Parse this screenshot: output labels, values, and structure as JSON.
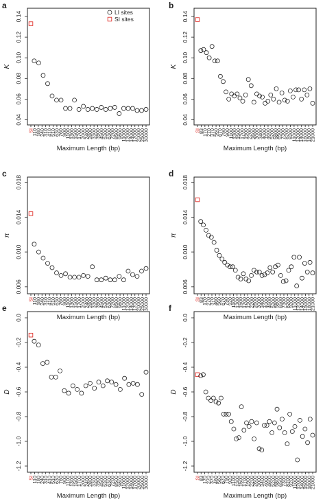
{
  "legend": {
    "entries": [
      {
        "label": "LI sites",
        "marker": "circle",
        "color": "#222222"
      },
      {
        "label": "SI sites",
        "marker": "square",
        "color": "#e0302a"
      }
    ]
  },
  "colors": {
    "li": "#222222",
    "si": "#e0302a"
  },
  "chart_data": [
    {
      "panel": "a",
      "type": "scatter",
      "ylabel": "K",
      "xlabel": "Maximum Length (bp)",
      "ylim": [
        0.035,
        0.148
      ],
      "yticks": [
        0.04,
        0.06,
        0.08,
        0.1,
        0.12,
        0.14
      ],
      "ytick_labels": [
        "0.04",
        "0.06",
        "0.08",
        "0.10",
        "0.12",
        "0.14"
      ],
      "legend_location": "top-right",
      "x_labels": [
        "SI",
        "110",
        "180",
        "240",
        "310",
        "410",
        "510",
        "630",
        "760",
        "900",
        "1100",
        "1300",
        "1500",
        "1700",
        "2000",
        "2400",
        "2800",
        "3300",
        "3900",
        "4500",
        "5300",
        "6300",
        "7200",
        "8500",
        "9800",
        "11000",
        "12000",
        "14000",
        "17000",
        "20000",
        "25000",
        "30000"
      ],
      "si_value": 0.133,
      "li_values": [
        0.097,
        0.095,
        0.083,
        0.075,
        0.063,
        0.059,
        0.059,
        0.051,
        0.051,
        0.059,
        0.05,
        0.053,
        0.05,
        0.051,
        0.05,
        0.052,
        0.05,
        0.051,
        0.052,
        0.046,
        0.051,
        0.051,
        0.051,
        0.049,
        0.049,
        0.05
      ]
    },
    {
      "panel": "b",
      "type": "scatter",
      "ylabel": "K",
      "xlabel": "Maximum Length (bp)",
      "ylim": [
        0.035,
        0.148
      ],
      "yticks": [
        0.04,
        0.06,
        0.08,
        0.1,
        0.12,
        0.14
      ],
      "ytick_labels": [
        "0.04",
        "0.06",
        "0.08",
        "0.10",
        "0.12",
        "0.14"
      ],
      "legend_location": "none",
      "x_labels": [
        "SI",
        "83",
        "170",
        "270",
        "370",
        "560",
        "670",
        "790",
        "900",
        "1100",
        "1300",
        "1500",
        "1700",
        "1900",
        "2200",
        "2600",
        "3000",
        "3400",
        "4000",
        "4600",
        "5200",
        "5800",
        "6500",
        "7300",
        "8200",
        "9200",
        "11000",
        "12000",
        "14000",
        "16000",
        "18000",
        "21000"
      ],
      "si_value": 0.137,
      "li_values": [
        0.107,
        0.108,
        0.105,
        0.1,
        0.111,
        0.097,
        0.097,
        0.082,
        0.077,
        0.067,
        0.06,
        0.065,
        0.063,
        0.065,
        0.061,
        0.058,
        0.064,
        0.079,
        0.073,
        0.057,
        0.065,
        0.063,
        0.062,
        0.056,
        0.058,
        0.064,
        0.06,
        0.07,
        0.057,
        0.066,
        0.059,
        0.058,
        0.068,
        0.062,
        0.069,
        0.069,
        0.06,
        0.069,
        0.064,
        0.07,
        0.056
      ]
    },
    {
      "panel": "c",
      "type": "scatter",
      "ylabel": "π",
      "xlabel": "Maximum Length (bp)",
      "ylim": [
        0.0052,
        0.0186
      ],
      "yticks": [
        0.006,
        0.01,
        0.014,
        0.018
      ],
      "ytick_labels": [
        "0.006",
        "0.010",
        "0.014",
        "0.018"
      ],
      "legend_location": "none",
      "x_labels": [
        "SI",
        "110",
        "180",
        "240",
        "310",
        "410",
        "510",
        "630",
        "760",
        "900",
        "1100",
        "1300",
        "1500",
        "1700",
        "2000",
        "2400",
        "2800",
        "3300",
        "3900",
        "4500",
        "5300",
        "6300",
        "7200",
        "8500",
        "9800",
        "11000",
        "12000",
        "14000",
        "17000",
        "20000",
        "25000",
        "30000"
      ],
      "si_value": 0.0144,
      "li_values": [
        0.0109,
        0.01,
        0.0093,
        0.0087,
        0.0082,
        0.0076,
        0.0073,
        0.0075,
        0.0071,
        0.0071,
        0.0071,
        0.0073,
        0.0072,
        0.0083,
        0.0068,
        0.0068,
        0.007,
        0.0068,
        0.0068,
        0.0072,
        0.0068,
        0.0078,
        0.0074,
        0.0072,
        0.0078,
        0.0081
      ]
    },
    {
      "panel": "d",
      "type": "scatter",
      "ylabel": "π",
      "xlabel": "Maximum Length (bp)",
      "ylim": [
        0.0052,
        0.0186
      ],
      "yticks": [
        0.006,
        0.01,
        0.014,
        0.018
      ],
      "ytick_labels": [
        "0.006",
        "0.010",
        "0.014",
        "0.018"
      ],
      "legend_location": "none",
      "x_labels": [
        "SI",
        "83",
        "170",
        "270",
        "370",
        "460",
        "560",
        "670",
        "790",
        "920",
        "1100",
        "1300",
        "1500",
        "1700",
        "1900",
        "2200",
        "2600",
        "3000",
        "3400",
        "4000",
        "4600",
        "5200",
        "5800",
        "6500",
        "7300",
        "8200",
        "9200",
        "11000",
        "12000",
        "14000",
        "15000",
        "18000",
        "21000"
      ],
      "si_value": 0.016,
      "li_values": [
        0.0135,
        0.0131,
        0.0125,
        0.0119,
        0.0117,
        0.0111,
        0.0102,
        0.0096,
        0.0092,
        0.0088,
        0.0085,
        0.0083,
        0.0083,
        0.0079,
        0.0071,
        0.0069,
        0.0075,
        0.0069,
        0.0067,
        0.0073,
        0.0079,
        0.0077,
        0.0077,
        0.0073,
        0.0074,
        0.0076,
        0.0082,
        0.0077,
        0.0083,
        0.0085,
        0.0073,
        0.0066,
        0.0067,
        0.0079,
        0.0083,
        0.0094,
        0.0061,
        0.0094,
        0.007,
        0.0087,
        0.0077,
        0.0088,
        0.0076
      ]
    },
    {
      "panel": "e",
      "type": "scatter",
      "ylabel": "D",
      "xlabel": "Maximum Length (bp)",
      "ylim": [
        -1.25,
        0.05
      ],
      "yticks": [
        -1.2,
        -1.0,
        -0.8,
        -0.6,
        -0.4,
        -0.2,
        0.0
      ],
      "ytick_labels": [
        "-1.2",
        "-1.0",
        "-0.8",
        "-0.6",
        "-0.4",
        "-0.2",
        "0.0"
      ],
      "legend_location": "none",
      "x_labels": [
        "SI",
        "110",
        "180",
        "240",
        "310",
        "410",
        "510",
        "630",
        "760",
        "900",
        "1100",
        "1300",
        "1500",
        "1700",
        "2000",
        "2400",
        "2800",
        "3300",
        "3900",
        "4500",
        "5300",
        "6300",
        "7200",
        "8500",
        "9800",
        "11000",
        "12000",
        "14000",
        "17000",
        "20000",
        "25000",
        "30000"
      ],
      "si_value": -0.14,
      "li_values": [
        -0.19,
        -0.22,
        -0.37,
        -0.36,
        -0.48,
        -0.48,
        -0.43,
        -0.59,
        -0.61,
        -0.55,
        -0.58,
        -0.61,
        -0.55,
        -0.53,
        -0.57,
        -0.52,
        -0.55,
        -0.51,
        -0.52,
        -0.54,
        -0.58,
        -0.49,
        -0.54,
        -0.53,
        -0.54,
        -0.62,
        -0.44
      ]
    },
    {
      "panel": "f",
      "type": "scatter",
      "ylabel": "D",
      "xlabel": "Maximum Length (bp)",
      "ylim": [
        -1.25,
        0.05
      ],
      "yticks": [
        -1.2,
        -1.0,
        -0.8,
        -0.6,
        -0.4,
        -0.2,
        0.0
      ],
      "ytick_labels": [
        "-1.2",
        "-1.0",
        "-0.8",
        "-0.6",
        "-0.4",
        "-0.2",
        "0.0"
      ],
      "legend_location": "none",
      "x_labels": [
        "SI",
        "83",
        "170",
        "270",
        "370",
        "460",
        "560",
        "670",
        "790",
        "920",
        "1100",
        "1300",
        "1500",
        "1700",
        "1900",
        "2200",
        "2600",
        "3000",
        "3400",
        "4000",
        "4600",
        "5200",
        "5800",
        "6500",
        "7300",
        "8200",
        "9200",
        "11000",
        "12000",
        "14000",
        "15000",
        "18000",
        "21000"
      ],
      "si_value": -0.46,
      "li_values": [
        -0.47,
        -0.46,
        -0.6,
        -0.65,
        -0.67,
        -0.65,
        -0.68,
        -0.69,
        -0.65,
        -0.78,
        -0.78,
        -0.78,
        -0.84,
        -0.9,
        -0.98,
        -0.97,
        -0.72,
        -0.91,
        -0.85,
        -0.88,
        -0.84,
        -0.98,
        -0.85,
        -1.06,
        -1.07,
        -0.87,
        -0.87,
        -0.84,
        -0.93,
        -0.85,
        -0.74,
        -0.89,
        -0.82,
        -0.93,
        -1.02,
        -0.78,
        -0.92,
        -0.88,
        -1.15,
        -0.83,
        -0.96,
        -0.9,
        -1.01,
        -0.82,
        -0.95
      ]
    }
  ]
}
